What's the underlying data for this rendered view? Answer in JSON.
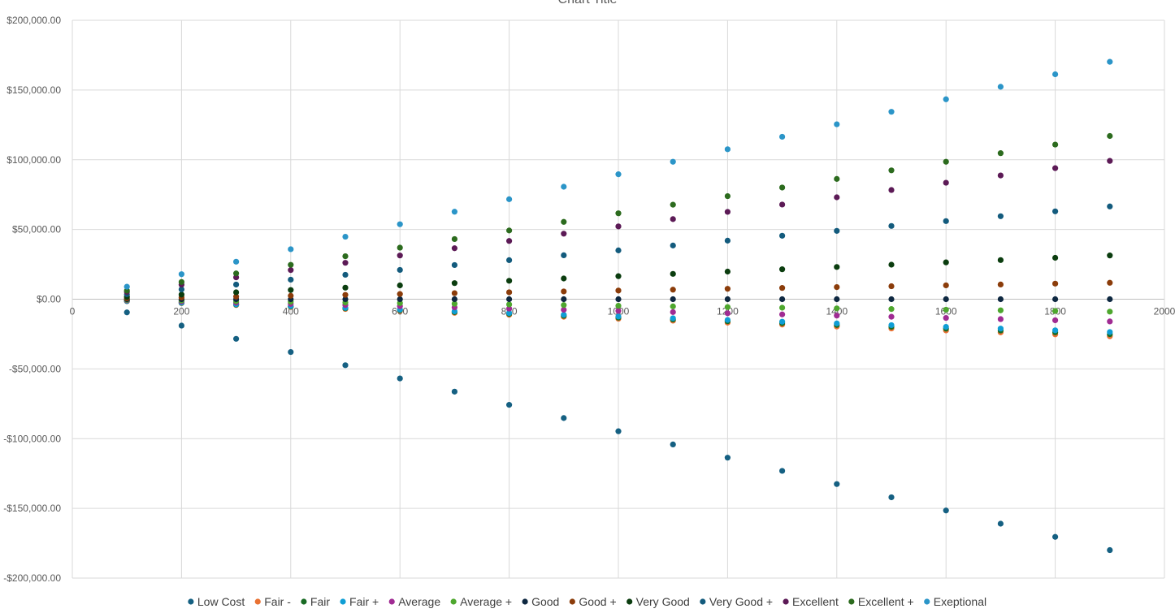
{
  "chart_data": {
    "type": "scatter",
    "title": "Chart Title",
    "xlabel": "",
    "ylabel": "",
    "xlim": [
      0,
      2000
    ],
    "ylim": [
      -200000,
      200000
    ],
    "x_ticks": [
      0,
      200,
      400,
      600,
      800,
      1000,
      1200,
      1400,
      1600,
      1800,
      2000
    ],
    "x_tick_labels": [
      "0",
      "200",
      "400",
      "600",
      "800",
      "1000",
      "1200",
      "1400",
      "1600",
      "1800",
      "2000"
    ],
    "y_ticks": [
      200000,
      150000,
      100000,
      50000,
      0,
      -50000,
      -100000,
      -150000,
      -200000
    ],
    "y_tick_labels": [
      "$200,000.00",
      "$150,000.00",
      "$100,000.00",
      "$50,000.00",
      "$0.00",
      "-$50,000.00",
      "-$100,000.00",
      "-$150,000.00",
      "-$200,000.00"
    ],
    "grid": true,
    "legend_position": "bottom",
    "x": [
      100,
      200,
      300,
      400,
      500,
      600,
      700,
      800,
      900,
      1000,
      1100,
      1200,
      1300,
      1400,
      1500,
      1600,
      1700,
      1800,
      1900
    ],
    "series": [
      {
        "name": "Low Cost",
        "color": "#156082",
        "slope": -94.7
      },
      {
        "name": "Fair -",
        "color": "#e97132",
        "slope": -14.0
      },
      {
        "name": "Fair",
        "color": "#196b24",
        "slope": -13.2
      },
      {
        "name": "Fair +",
        "color": "#0f9ed5",
        "slope": -12.4
      },
      {
        "name": "Average",
        "color": "#a02b93",
        "slope": -8.4
      },
      {
        "name": "Average +",
        "color": "#4ea72e",
        "slope": -4.7
      },
      {
        "name": "Good",
        "color": "#0e2841",
        "slope": 0.0
      },
      {
        "name": "Good +",
        "color": "#8b3c0a",
        "slope": 6.2
      },
      {
        "name": "Very Good",
        "color": "#0b3d0f",
        "slope": 16.5
      },
      {
        "name": "Very Good +",
        "color": "#135b7d",
        "slope": 35.0
      },
      {
        "name": "Excellent",
        "color": "#5c1a56",
        "slope": 52.2
      },
      {
        "name": "Excellent +",
        "color": "#2c6b1e",
        "slope": 61.6
      },
      {
        "name": "Exeptional",
        "color": "#2b95c8",
        "slope": 89.6
      }
    ]
  }
}
